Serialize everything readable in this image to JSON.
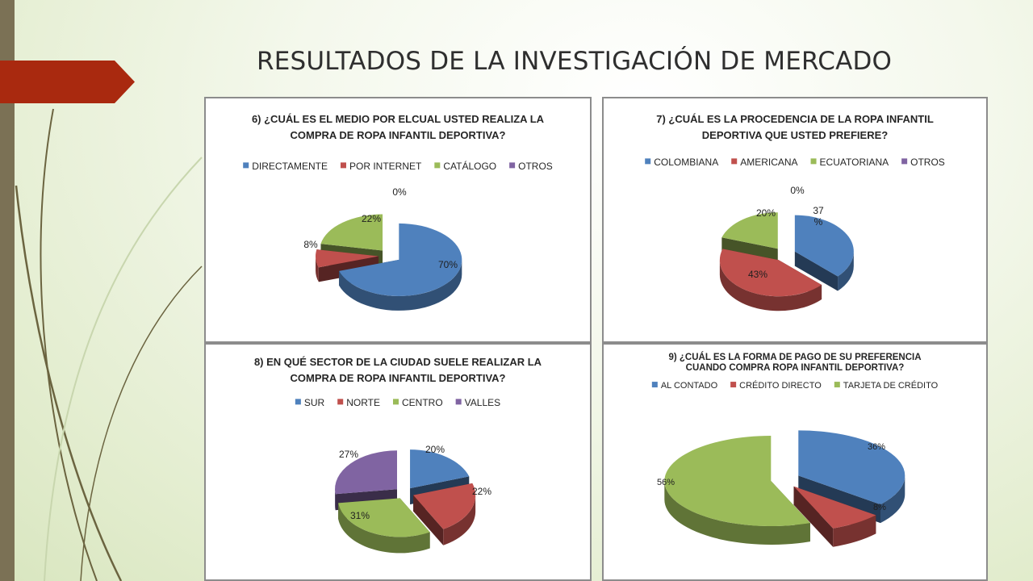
{
  "slide": {
    "title": "RESULTADOS DE LA INVESTIGACIÓN DE MERCADO"
  },
  "chart_data": [
    {
      "type": "pie",
      "title_lines": [
        "6)  ¿CUÁL ES EL MEDIO POR ELCUAL USTED REALIZA LA",
        "COMPRA DE ROPA INFANTIL DEPORTIVA?"
      ],
      "categories": [
        "DIRECTAMENTE",
        "POR INTERNET",
        "CATÁLOGO",
        "OTROS"
      ],
      "values": [
        70,
        8,
        22,
        0
      ],
      "labels": [
        "70%",
        "8%",
        "22%",
        "0%"
      ],
      "colors": [
        "#4f81bd",
        "#c0504d",
        "#9bbb59",
        "#8064a2"
      ],
      "legend": "top",
      "style": "3d-exploded"
    },
    {
      "type": "pie",
      "title_lines": [
        "7) ¿CUÁL ES LA PROCEDENCIA DE LA ROPA INFANTIL",
        "DEPORTIVA QUE USTED PREFIERE?"
      ],
      "categories": [
        "COLOMBIANA",
        "AMERICANA",
        "ECUATORIANA",
        "OTROS"
      ],
      "values": [
        37,
        43,
        20,
        0
      ],
      "labels": [
        "37\n%",
        "43%",
        "20%",
        "0%"
      ],
      "colors": [
        "#4f81bd",
        "#c0504d",
        "#9bbb59",
        "#8064a2"
      ],
      "legend": "top",
      "style": "3d-exploded"
    },
    {
      "type": "pie",
      "title_lines": [
        "8) EN QUÉ SECTOR DE LA CIUDAD SUELE REALIZAR LA",
        "COMPRA DE ROPA INFANTIL DEPORTIVA?"
      ],
      "categories": [
        "SUR",
        "NORTE",
        "CENTRO",
        "VALLES"
      ],
      "values": [
        20,
        22,
        31,
        27
      ],
      "labels": [
        "20%",
        "22%",
        "31%",
        "27%"
      ],
      "colors": [
        "#4f81bd",
        "#c0504d",
        "#9bbb59",
        "#8064a2"
      ],
      "legend": "top",
      "style": "3d-exploded"
    },
    {
      "type": "pie",
      "title_lines": [
        "9) ¿CUÁL ES LA FORMA DE PAGO DE SU PREFERENCIA",
        "CUANDO COMPRA ROPA INFANTIL DEPORTIVA?"
      ],
      "categories": [
        "AL CONTADO",
        "CRÉDITO DIRECTO",
        "TARJETA DE CRÉDITO"
      ],
      "values": [
        36,
        8,
        56
      ],
      "labels": [
        "36%",
        "8%",
        "56%"
      ],
      "colors": [
        "#4f81bd",
        "#c0504d",
        "#9bbb59"
      ],
      "legend": "top",
      "style": "3d-exploded"
    }
  ]
}
